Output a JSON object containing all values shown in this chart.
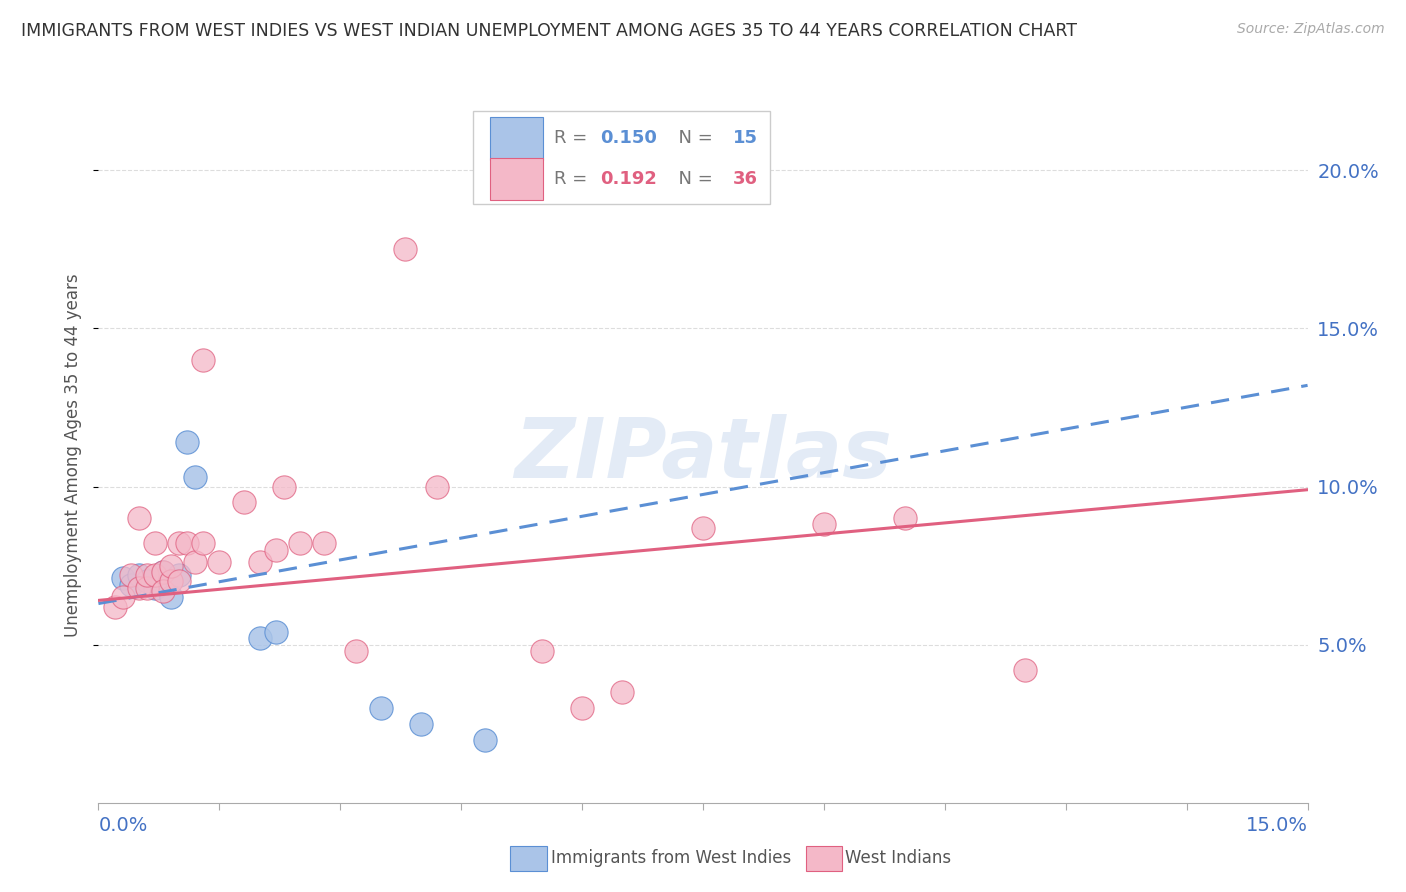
{
  "title": "IMMIGRANTS FROM WEST INDIES VS WEST INDIAN UNEMPLOYMENT AMONG AGES 35 TO 44 YEARS CORRELATION CHART",
  "source": "Source: ZipAtlas.com",
  "ylabel": "Unemployment Among Ages 35 to 44 years",
  "ylabel_right_ticks": [
    "5.0%",
    "10.0%",
    "15.0%",
    "20.0%"
  ],
  "ylabel_right_vals": [
    0.05,
    0.1,
    0.15,
    0.2
  ],
  "xlim": [
    0.0,
    0.15
  ],
  "ylim": [
    0.0,
    0.22
  ],
  "series1_color": "#aac4e8",
  "series2_color": "#f4b8c8",
  "trendline1_color": "#5b8fd4",
  "trendline2_color": "#e06080",
  "watermark": "ZIPatlas",
  "background_color": "#ffffff",
  "grid_color": "#dddddd",
  "axis_label_color": "#4472c4",
  "blue_x": [
    0.003,
    0.004,
    0.005,
    0.006,
    0.007,
    0.008,
    0.009,
    0.01,
    0.011,
    0.012,
    0.02,
    0.022,
    0.035,
    0.04,
    0.048
  ],
  "blue_y": [
    0.071,
    0.069,
    0.072,
    0.07,
    0.068,
    0.073,
    0.065,
    0.072,
    0.114,
    0.103,
    0.052,
    0.054,
    0.03,
    0.025,
    0.02
  ],
  "pink_x": [
    0.002,
    0.003,
    0.004,
    0.005,
    0.005,
    0.006,
    0.006,
    0.007,
    0.007,
    0.008,
    0.008,
    0.009,
    0.009,
    0.01,
    0.01,
    0.011,
    0.012,
    0.013,
    0.013,
    0.015,
    0.018,
    0.02,
    0.022,
    0.023,
    0.025,
    0.028,
    0.032,
    0.038,
    0.042,
    0.055,
    0.06,
    0.065,
    0.075,
    0.09,
    0.1,
    0.115
  ],
  "pink_y": [
    0.062,
    0.065,
    0.072,
    0.068,
    0.09,
    0.068,
    0.072,
    0.072,
    0.082,
    0.073,
    0.067,
    0.07,
    0.075,
    0.07,
    0.082,
    0.082,
    0.076,
    0.082,
    0.14,
    0.076,
    0.095,
    0.076,
    0.08,
    0.1,
    0.082,
    0.082,
    0.048,
    0.175,
    0.1,
    0.048,
    0.03,
    0.035,
    0.087,
    0.088,
    0.09,
    0.042
  ],
  "trendline1_start_y": 0.063,
  "trendline1_end_y": 0.132,
  "trendline2_start_y": 0.064,
  "trendline2_end_y": 0.099
}
